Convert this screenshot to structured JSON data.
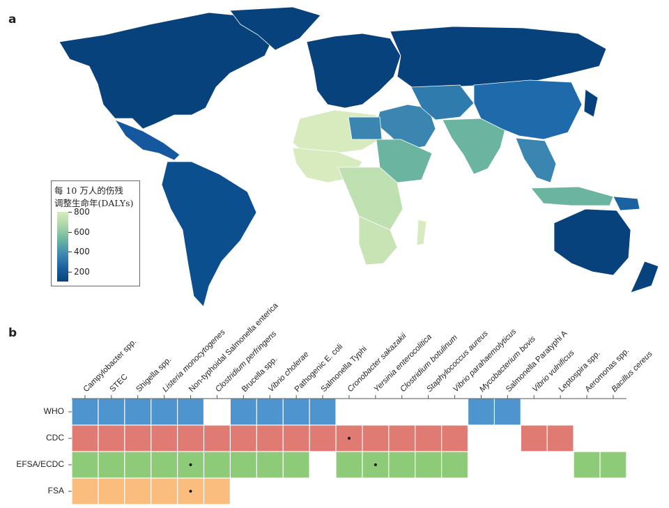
{
  "panel_a": {
    "label": "a",
    "legend": {
      "title_line1": "每 10 万人的伤残",
      "title_line2": "调整生命年(DALYs)",
      "ticks": [
        {
          "label": "800",
          "value": 800
        },
        {
          "label": "600",
          "value": 600
        },
        {
          "label": "400",
          "value": 400
        },
        {
          "label": "200",
          "value": 200
        }
      ]
    },
    "colors": {
      "low": "#08427c",
      "mid_low": "#1b62a0",
      "mid": "#3e8bb3",
      "mid_high": "#6bb5a0",
      "high": "#a9d6a7",
      "highest": "#d7ebbf"
    }
  },
  "panel_b": {
    "label": "b"
  },
  "chart_data": {
    "type": "heatmap",
    "columns": [
      "Campylobacter spp.",
      "STEC",
      "Shigella spp.",
      "Listeria monocytogenes",
      "Non-typhoidal Salmonella enterica",
      "Clostridium perfringens",
      "Brucella spp.",
      "Vibrio cholerae",
      "Pathogenic E. coli",
      "Salmonella Typhi",
      "Cronobacter sakazakii",
      "Yersinia enterocolitica",
      "Clostridium botulinum",
      "Staphylococcus aureus",
      "Vibrio parahaemolyticus",
      "Mycobacterium bovis",
      "Salmonella Paratyphi A",
      "Vibrio vulnificus",
      "Leptospira spp.",
      "Aeromonas spp.",
      "Bacillus cereus"
    ],
    "rows": [
      {
        "name": "WHO",
        "color": "#4e95cf",
        "cells": [
          1,
          1,
          1,
          1,
          1,
          0,
          1,
          1,
          1,
          1,
          0,
          0,
          0,
          0,
          0,
          1,
          1,
          0,
          0,
          0,
          0
        ],
        "marked": []
      },
      {
        "name": "CDC",
        "color": "#e07b74",
        "cells": [
          1,
          1,
          1,
          1,
          1,
          1,
          1,
          1,
          1,
          1,
          1,
          1,
          1,
          1,
          1,
          0,
          0,
          1,
          1,
          0,
          0
        ],
        "marked": [
          10
        ]
      },
      {
        "name": "EFSA/ECDC",
        "color": "#8ecb78",
        "cells": [
          1,
          1,
          1,
          1,
          1,
          1,
          1,
          1,
          1,
          0,
          1,
          1,
          1,
          1,
          1,
          0,
          0,
          0,
          0,
          1,
          1
        ],
        "marked": [
          4,
          11
        ]
      },
      {
        "name": "FSA",
        "color": "#fbbd7d",
        "cells": [
          1,
          1,
          1,
          1,
          1,
          1,
          0,
          0,
          0,
          0,
          0,
          0,
          0,
          0,
          0,
          0,
          0,
          0,
          0,
          0,
          0
        ],
        "marked": [
          4
        ]
      }
    ],
    "marker_symbol": "•"
  }
}
